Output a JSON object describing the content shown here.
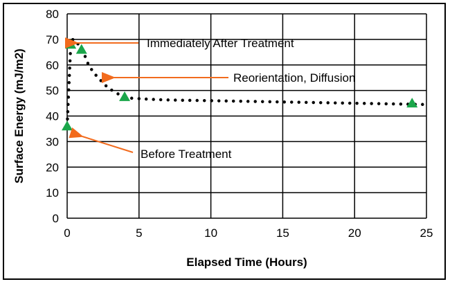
{
  "chart_data": {
    "type": "scatter",
    "title": "",
    "xlabel": "Elapsed Time (Hours)",
    "ylabel": "Surface Energy (mJ/m2)",
    "xlim": [
      0,
      25
    ],
    "ylim": [
      0,
      80
    ],
    "xticks": [
      0,
      5,
      10,
      15,
      20,
      25
    ],
    "yticks": [
      0,
      10,
      20,
      30,
      40,
      50,
      60,
      70,
      80
    ],
    "grid": true,
    "series": [
      {
        "marker": "triangle",
        "color": "#1aa64a",
        "x": [
          0,
          0.25,
          1,
          4,
          24
        ],
        "y": [
          36,
          68,
          66,
          47.5,
          45
        ]
      }
    ],
    "trendline": {
      "style": "dotted",
      "color": "#000000",
      "x": [
        0,
        0.25,
        1,
        1.5,
        2,
        2.5,
        3,
        4,
        5,
        7,
        10,
        15,
        20,
        25
      ],
      "y": [
        36,
        68,
        66,
        60,
        56,
        53,
        50.5,
        47.5,
        46.8,
        46.3,
        46,
        45.5,
        45,
        44.5
      ]
    },
    "annotations": [
      {
        "text": "Immediately After Treatment",
        "x": 0.25,
        "y": 68
      },
      {
        "text": "Reorientation, Diffusion",
        "x": 2.8,
        "y": 55
      },
      {
        "text": "Before Treatment",
        "x": 0.6,
        "y": 33
      }
    ],
    "annotation_color": "#f26b1d"
  }
}
